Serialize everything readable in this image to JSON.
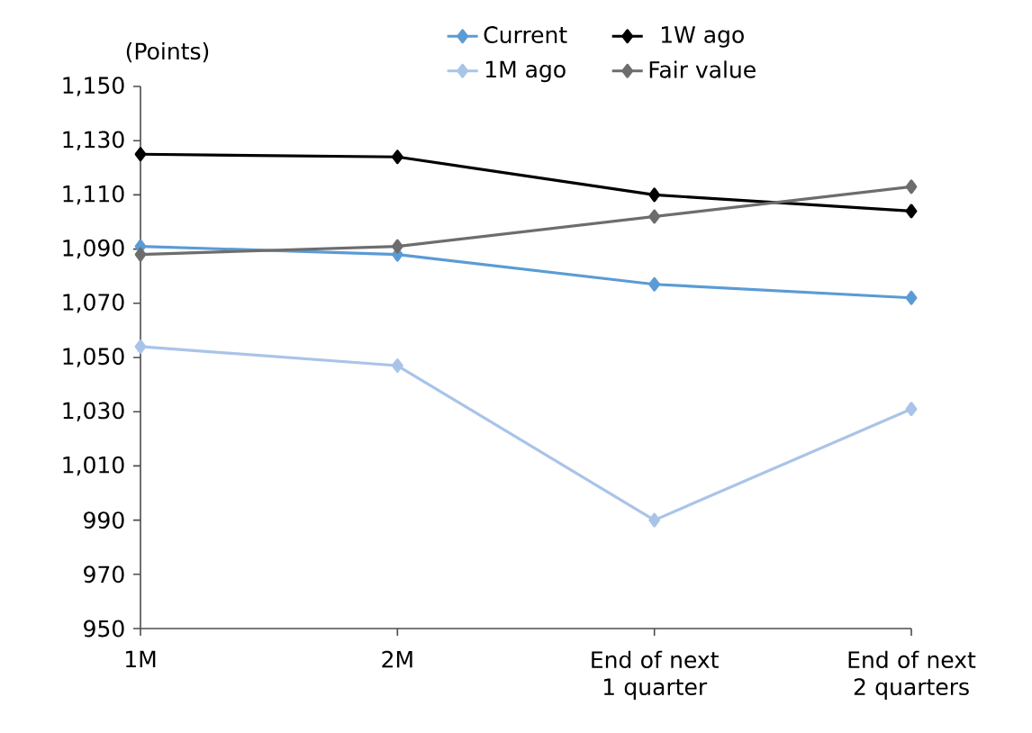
{
  "chart_data": {
    "type": "line",
    "ylabel": "(Points)",
    "categories": [
      "1M",
      "2M",
      "End of next 1 quarter",
      "End of next 2 quarters"
    ],
    "series": [
      {
        "name": "Current",
        "color": "#5b9bd5",
        "values": [
          1091,
          1088,
          1077,
          1072
        ]
      },
      {
        "name": "1W ago",
        "color": "#000000",
        "values": [
          1125,
          1124,
          1110,
          1104
        ]
      },
      {
        "name": "1M ago",
        "color": "#a9c4e8",
        "values": [
          1054,
          1047,
          990,
          1031
        ]
      },
      {
        "name": "Fair value",
        "color": "#6d6d6d",
        "values": [
          1088,
          1091,
          1102,
          1113
        ]
      }
    ],
    "ylim": [
      950,
      1150
    ],
    "yticks": [
      {
        "value": 950,
        "label": "950"
      },
      {
        "value": 970,
        "label": "970"
      },
      {
        "value": 990,
        "label": "990"
      },
      {
        "value": 1010,
        "label": "1,010"
      },
      {
        "value": 1030,
        "label": "1,030"
      },
      {
        "value": 1050,
        "label": "1,050"
      },
      {
        "value": 1070,
        "label": "1,070"
      },
      {
        "value": 1090,
        "label": "1,090"
      },
      {
        "value": 1110,
        "label": "1,110"
      },
      {
        "value": 1130,
        "label": "1,130"
      },
      {
        "value": 1150,
        "label": "1,150"
      }
    ],
    "legend": "top",
    "marker": "diamond",
    "line_style": "solid"
  }
}
